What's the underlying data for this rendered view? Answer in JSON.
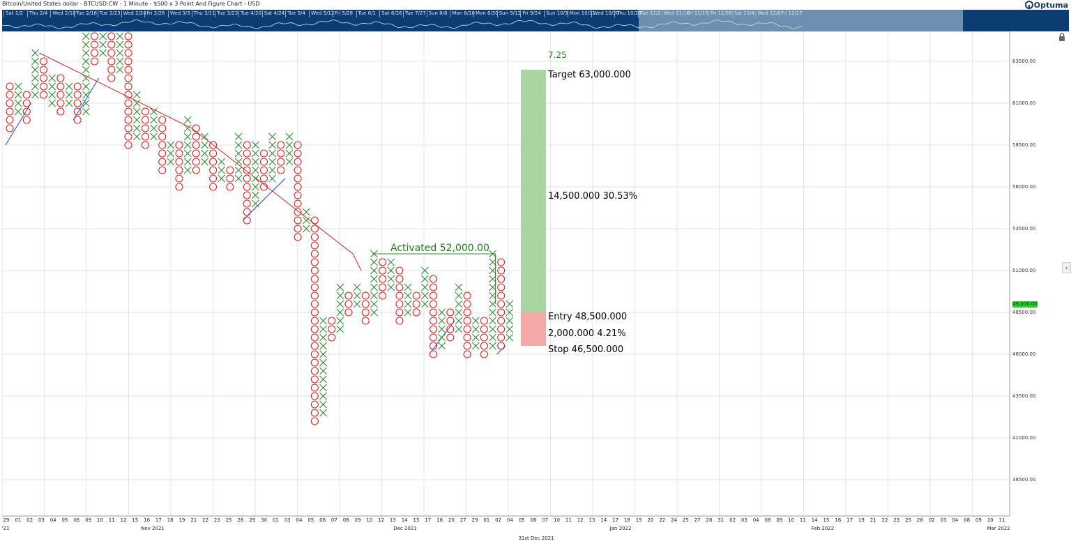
{
  "header": {
    "title": "Bitcoin/United States dollar - BTCUSD:CW - 1 Minute - $500 x 3 Point And Figure Chart - USD",
    "brand": "Optuma"
  },
  "overview": {
    "ticks": [
      "Sat 1/2",
      "Thu 2/4",
      "Wed 2/10",
      "Tue 2/16",
      "Tue 2/23",
      "Wed 2/24",
      "Fri 2/26",
      "Wed 3/3",
      "Thu 3/11",
      "Tue 3/23",
      "Tue 4/20",
      "Sat 4/24",
      "Tue 5/4",
      "Wed 5/12",
      "Fri 5/28",
      "Tue 6/1",
      "Sat 6/26",
      "Tue 7/27",
      "Sun 8/8",
      "Mon 8/16",
      "Mon 8/30",
      "Sun 9/12",
      "Fri 9/24",
      "Sun 10/3",
      "Mon 10/11",
      "Wed 10/20",
      "Thu 10/28",
      "Tue 11/2",
      "Wed 11/10",
      "Fri 11/19",
      "Fri 11/26",
      "Sat 12/4",
      "Wed 12/8",
      "Fri 12/17"
    ]
  },
  "y_axis": {
    "ticks": [
      "63500.00",
      "61000.00",
      "58500.00",
      "56000.00",
      "53500.00",
      "51000.00",
      "48500.00",
      "46000.00",
      "43500.00",
      "41000.00",
      "38500.00"
    ]
  },
  "current_price": "49,000.00",
  "x_axis": {
    "ticks": [
      "29",
      "01",
      "02",
      "03",
      "04",
      "05",
      "06",
      "09",
      "10",
      "11",
      "12",
      "15",
      "16",
      "17",
      "18",
      "19",
      "21",
      "22",
      "23",
      "25",
      "26",
      "29",
      "30",
      "01",
      "03",
      "04",
      "05",
      "06",
      "07",
      "08",
      "09",
      "10",
      "12",
      "13",
      "14",
      "15",
      "17",
      "18",
      "20",
      "27",
      "29",
      "01",
      "02",
      "04",
      "05",
      "06",
      "07",
      "10",
      "11",
      "12",
      "13",
      "14",
      "17",
      "18",
      "19",
      "20",
      "22",
      "24",
      "25",
      "27",
      "28",
      "31",
      "02",
      "03",
      "04",
      "08",
      "09",
      "10",
      "11",
      "14",
      "15",
      "16",
      "17",
      "19",
      "21",
      "22",
      "23",
      "25",
      "28",
      "02",
      "03",
      "04",
      "08",
      "09",
      "10",
      "11"
    ],
    "months": [
      "Nov 2021",
      "Dec 2021",
      "Jan 2022",
      "Feb 2022",
      "Mar 2022"
    ],
    "edge_label": "'21",
    "date_indicator": "31st Dec 2021"
  },
  "annotations": {
    "activated": "Activated 52,000.00",
    "count": "7.25",
    "target": "Target   63,000.000",
    "reward": "14,500.000   30.53%",
    "entry": "Entry   48,500.000",
    "risk": "2,000.000   4.21%",
    "stop": "Stop   46,500.000"
  },
  "colors": {
    "x_mark": "#2e8b2e",
    "o_mark": "#e02020",
    "resistance_line": "#e02020",
    "support_line": "#1f3fd6",
    "target_zone": "#a8d5a0",
    "stop_zone": "#f5a9a9",
    "overview_bg": "#0b3d73",
    "annotation_green": "#1a7f1a"
  },
  "chart_data": {
    "type": "point-and-figure",
    "title": "Bitcoin/United States dollar - BTCUSD:CW - 1 Minute - $500 x 3 Point And Figure Chart - USD",
    "box_size": 500,
    "reversal": 3,
    "ylim": [
      37000,
      65000
    ],
    "columns": [
      {
        "type": "O",
        "low": 59500,
        "high": 62000
      },
      {
        "type": "X",
        "low": 60500,
        "high": 62000
      },
      {
        "type": "O",
        "low": 60000,
        "high": 61500
      },
      {
        "type": "X",
        "low": 61500,
        "high": 64000
      },
      {
        "type": "O",
        "low": 61500,
        "high": 63500
      },
      {
        "type": "X",
        "low": 61000,
        "high": 62500
      },
      {
        "type": "O",
        "low": 60500,
        "high": 62500
      },
      {
        "type": "X",
        "low": 61000,
        "high": 62000
      },
      {
        "type": "O",
        "low": 60000,
        "high": 62000
      },
      {
        "type": "X",
        "low": 60500,
        "high": 65500
      },
      {
        "type": "O",
        "low": 63500,
        "high": 65500
      },
      {
        "type": "X",
        "low": 64000,
        "high": 65500
      },
      {
        "type": "O",
        "low": 62500,
        "high": 65500
      },
      {
        "type": "X",
        "low": 63000,
        "high": 65500
      },
      {
        "type": "O",
        "low": 58500,
        "high": 65500
      },
      {
        "type": "X",
        "low": 59000,
        "high": 61500
      },
      {
        "type": "O",
        "low": 58500,
        "high": 60500
      },
      {
        "type": "X",
        "low": 59000,
        "high": 60500
      },
      {
        "type": "O",
        "low": 57000,
        "high": 60000
      },
      {
        "type": "X",
        "low": 57500,
        "high": 58500
      },
      {
        "type": "O",
        "low": 56000,
        "high": 58500
      },
      {
        "type": "X",
        "low": 57000,
        "high": 60000
      },
      {
        "type": "O",
        "low": 57000,
        "high": 59500
      },
      {
        "type": "X",
        "low": 57500,
        "high": 59000
      },
      {
        "type": "O",
        "low": 56000,
        "high": 58500
      },
      {
        "type": "X",
        "low": 56500,
        "high": 57500
      },
      {
        "type": "O",
        "low": 56000,
        "high": 57000
      },
      {
        "type": "X",
        "low": 56500,
        "high": 59000
      },
      {
        "type": "O",
        "low": 54000,
        "high": 58500
      },
      {
        "type": "X",
        "low": 55000,
        "high": 58500
      },
      {
        "type": "O",
        "low": 56000,
        "high": 58000
      },
      {
        "type": "X",
        "low": 56500,
        "high": 59000
      },
      {
        "type": "O",
        "low": 57000,
        "high": 58500
      },
      {
        "type": "X",
        "low": 57500,
        "high": 59000
      },
      {
        "type": "O",
        "low": 53000,
        "high": 58500
      },
      {
        "type": "X",
        "low": 53500,
        "high": 54500
      },
      {
        "type": "O",
        "low": 42000,
        "high": 54000
      },
      {
        "type": "X",
        "low": 42500,
        "high": 48000
      },
      {
        "type": "O",
        "low": 47000,
        "high": 48000
      },
      {
        "type": "X",
        "low": 47500,
        "high": 50000
      },
      {
        "type": "O",
        "low": 48500,
        "high": 49500
      },
      {
        "type": "X",
        "low": 49000,
        "high": 50000
      },
      {
        "type": "O",
        "low": 48000,
        "high": 49500
      },
      {
        "type": "X",
        "low": 48500,
        "high": 52000
      },
      {
        "type": "O",
        "low": 49500,
        "high": 51500
      },
      {
        "type": "X",
        "low": 50000,
        "high": 51500
      },
      {
        "type": "O",
        "low": 48000,
        "high": 51000
      },
      {
        "type": "X",
        "low": 48500,
        "high": 50000
      },
      {
        "type": "O",
        "low": 48500,
        "high": 49500
      },
      {
        "type": "X",
        "low": 49000,
        "high": 51000
      },
      {
        "type": "O",
        "low": 46000,
        "high": 50500
      },
      {
        "type": "X",
        "low": 46500,
        "high": 48500
      },
      {
        "type": "O",
        "low": 47000,
        "high": 48500
      },
      {
        "type": "X",
        "low": 47500,
        "high": 50000
      },
      {
        "type": "O",
        "low": 46000,
        "high": 49500
      },
      {
        "type": "X",
        "low": 46500,
        "high": 48000
      },
      {
        "type": "O",
        "low": 46000,
        "high": 48000
      },
      {
        "type": "X",
        "low": 46500,
        "high": 52000
      },
      {
        "type": "O",
        "low": 46500,
        "high": 51500
      },
      {
        "type": "X",
        "low": 47000,
        "high": 49000
      }
    ],
    "trendlines": [
      {
        "kind": "resistance",
        "points": [
          [
            3,
            64000
          ],
          [
            21,
            59500
          ],
          [
            40,
            52000
          ],
          [
            41,
            51000
          ]
        ]
      },
      {
        "kind": "support",
        "points": [
          [
            0,
            58500
          ],
          [
            3,
            61000
          ]
        ]
      },
      {
        "kind": "support",
        "points": [
          [
            8,
            60000
          ],
          [
            11,
            62500
          ]
        ]
      },
      {
        "kind": "support",
        "points": [
          [
            28,
            54000
          ],
          [
            33,
            56500
          ]
        ]
      },
      {
        "kind": "support",
        "points": [
          [
            50,
            46000
          ],
          [
            53,
            48000
          ]
        ]
      },
      {
        "kind": "support",
        "points": [
          [
            58,
            46000
          ],
          [
            59,
            46500
          ]
        ]
      }
    ],
    "activated_level": 52000,
    "target": 63000,
    "entry": 48500,
    "stop": 46500,
    "reward": 14500,
    "reward_pct": 30.53,
    "risk": 2000,
    "risk_pct": 4.21,
    "ratio": 7.25
  }
}
